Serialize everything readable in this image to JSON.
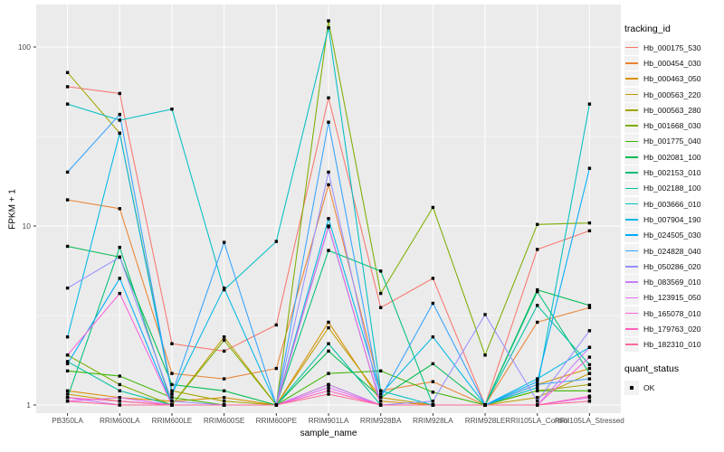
{
  "figure": {
    "background": "#FFFFFF",
    "panel_background": "#EBEBEB",
    "grid_color": "#FFFFFF",
    "point_color": "#000000",
    "tick_label_color": "#4D4D4D"
  },
  "axes": {
    "x_title": "sample_name",
    "y_title": "FPKM + 1",
    "y_ticks": [
      "1",
      "10",
      "100"
    ],
    "y_tick_values": [
      1,
      10,
      100
    ]
  },
  "legend": {
    "tracking_title": "tracking_id",
    "quant_title": "quant_status",
    "quant_items": [
      {
        "label": "OK",
        "key": "black-square"
      }
    ]
  },
  "chart_data": {
    "type": "line",
    "title": "",
    "xlabel": "sample_name",
    "ylabel": "FPKM + 1",
    "y_scale": "log10",
    "ylim": [
      1,
      150
    ],
    "grid": "major-white-on-gray, minor half-decades",
    "legend_position": "right",
    "point_shape": "small black square (quant_status = OK)",
    "categories": [
      "PB350LA",
      "RRIM600LA",
      "RRIM600LE",
      "RRIM600SE",
      "RRIM600PE",
      "RRIM901LA",
      "RRIM928BA",
      "RRIM928LA",
      "RRIM928LE",
      "RRII105LA_Control",
      "RRII105LA_Stressed"
    ],
    "series": [
      {
        "name": "Hb_000175_530",
        "color": "#F8766D",
        "values": [
          60,
          55,
          2.2,
          2.0,
          2.8,
          52,
          3.5,
          5.1,
          1.0,
          7.4,
          9.4
        ]
      },
      {
        "name": "Hb_000454_030",
        "color": "#EA8331",
        "values": [
          14,
          12.5,
          1.5,
          1.4,
          1.6,
          17,
          1.2,
          1.35,
          1.0,
          2.9,
          3.5
        ]
      },
      {
        "name": "Hb_000463_050",
        "color": "#D89000",
        "values": [
          1.2,
          1.1,
          1.05,
          1.1,
          1.0,
          2.9,
          1.05,
          1.0,
          1.0,
          1.3,
          1.6
        ]
      },
      {
        "name": "Hb_000563_220",
        "color": "#C09B00",
        "values": [
          1.15,
          1.05,
          1.0,
          2.4,
          1.0,
          2.7,
          1.1,
          1.0,
          1.0,
          1.1,
          1.5
        ]
      },
      {
        "name": "Hb_000563_280",
        "color": "#A3A500",
        "values": [
          72,
          33,
          1.2,
          1.05,
          1.0,
          1.3,
          1.0,
          1.0,
          1.0,
          1.2,
          1.3
        ]
      },
      {
        "name": "Hb_001668_030",
        "color": "#7CAE00",
        "values": [
          1.9,
          1.3,
          1.0,
          2.3,
          1.0,
          140,
          4.2,
          12.7,
          1.9,
          10.2,
          10.4
        ]
      },
      {
        "name": "Hb_001775_040",
        "color": "#39B600",
        "values": [
          1.55,
          1.45,
          1.1,
          1.0,
          1.0,
          1.5,
          1.55,
          1.18,
          1.0,
          1.2,
          1.2
        ]
      },
      {
        "name": "Hb_002081_100",
        "color": "#00BB4E",
        "values": [
          7.7,
          6.7,
          1.3,
          1.2,
          1.0,
          2.0,
          1.1,
          1.7,
          1.0,
          4.4,
          3.6
        ]
      },
      {
        "name": "Hb_002153_010",
        "color": "#00C078",
        "values": [
          1.1,
          7.6,
          1.0,
          1.0,
          1.0,
          7.3,
          5.6,
          1.0,
          1.0,
          4.3,
          1.5
        ]
      },
      {
        "name": "Hb_002188_100",
        "color": "#00C19F",
        "values": [
          1.75,
          1.2,
          1.0,
          1.0,
          1.0,
          2.2,
          1.0,
          1.0,
          1.0,
          3.6,
          1.68
        ]
      },
      {
        "name": "Hb_003666_010",
        "color": "#00BFC4",
        "values": [
          48,
          39,
          45,
          4.4,
          8.2,
          128,
          1.2,
          1.0,
          1.0,
          1.25,
          48
        ]
      },
      {
        "name": "Hb_007904_190",
        "color": "#00B8E7",
        "values": [
          2.4,
          33,
          1.15,
          4.5,
          1.0,
          11,
          1.15,
          2.4,
          1.0,
          1.4,
          2.1
        ]
      },
      {
        "name": "Hb_024505_030",
        "color": "#00ACFC",
        "values": [
          1.7,
          5.1,
          1.0,
          1.0,
          1.0,
          9.9,
          1.0,
          1.0,
          1.0,
          1.35,
          21
        ]
      },
      {
        "name": "Hb_024828_040",
        "color": "#35A2FF",
        "values": [
          20,
          42,
          1.15,
          8.1,
          1.0,
          38,
          1.1,
          3.7,
          1.0,
          1.3,
          1.4
        ]
      },
      {
        "name": "Hb_050286_020",
        "color": "#9590FF",
        "values": [
          4.5,
          6.7,
          1.05,
          1.0,
          1.0,
          20,
          1.0,
          1.05,
          3.2,
          1.05,
          2.6
        ]
      },
      {
        "name": "Hb_083569_010",
        "color": "#C77CFF",
        "values": [
          1.1,
          1.0,
          1.0,
          1.0,
          1.0,
          1.3,
          1.0,
          1.0,
          1.0,
          1.0,
          2.1
        ]
      },
      {
        "name": "Hb_123915_050",
        "color": "#E76BF3",
        "values": [
          1.05,
          1.1,
          1.0,
          1.0,
          1.0,
          1.25,
          1.0,
          1.0,
          1.0,
          1.0,
          1.1
        ]
      },
      {
        "name": "Hb_165078_010",
        "color": "#FA62DB",
        "values": [
          1.9,
          4.2,
          1.0,
          1.0,
          1.0,
          10,
          1.0,
          1.0,
          1.0,
          1.0,
          1.85
        ]
      },
      {
        "name": "Hb_179763_020",
        "color": "#FF62BC",
        "values": [
          1.1,
          1.05,
          1.0,
          1.0,
          1.0,
          1.2,
          1.0,
          1.0,
          1.0,
          1.0,
          1.12
        ]
      },
      {
        "name": "Hb_182310_010",
        "color": "#FF6A98",
        "values": [
          1.05,
          1.0,
          1.0,
          1.0,
          1.0,
          1.15,
          1.0,
          1.0,
          1.0,
          1.0,
          1.05
        ]
      }
    ]
  }
}
